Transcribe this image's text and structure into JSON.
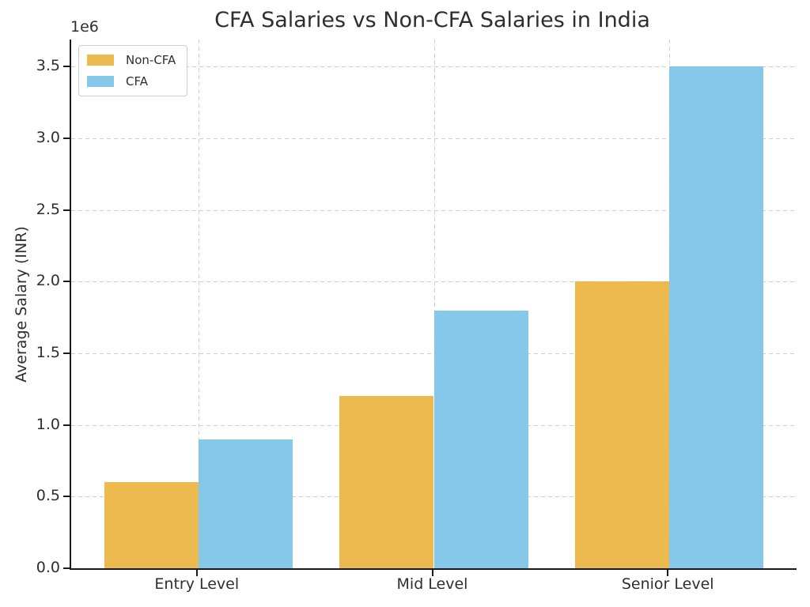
{
  "figure": {
    "background": "#ffffff"
  },
  "chart_data": {
    "type": "bar",
    "title": "CFA Salaries vs Non-CFA Salaries in India",
    "ylabel": "Average Salary (INR)",
    "xlabel": "",
    "y_offset_label": "1e6",
    "categories": [
      "Entry Level",
      "Mid Level",
      "Senior Level"
    ],
    "series": [
      {
        "name": "Non-CFA",
        "color": "#EAB23C",
        "values": [
          600000,
          1200000,
          2000000
        ]
      },
      {
        "name": "CFA",
        "color": "#79C2E8",
        "values": [
          900000,
          1800000,
          3500000
        ]
      }
    ],
    "bar_alpha": 0.9,
    "bar_width": 0.4,
    "y_scale": 1000000,
    "yticks": [
      0,
      0.5,
      1.0,
      1.5,
      2.0,
      2.5,
      3.0,
      3.5
    ],
    "ytick_labels": [
      "0.0",
      "0.5",
      "1.0",
      "1.5",
      "2.0",
      "2.5",
      "3.0",
      "3.5"
    ],
    "ylim": [
      0,
      3.69
    ],
    "xlim": [
      -0.54,
      2.54
    ],
    "grid": true,
    "grid_color": "#cfcfcf",
    "axis_color": "#1a1a1a",
    "text_color": "#2e2e2e",
    "legend": {
      "position": "upper-left"
    }
  }
}
